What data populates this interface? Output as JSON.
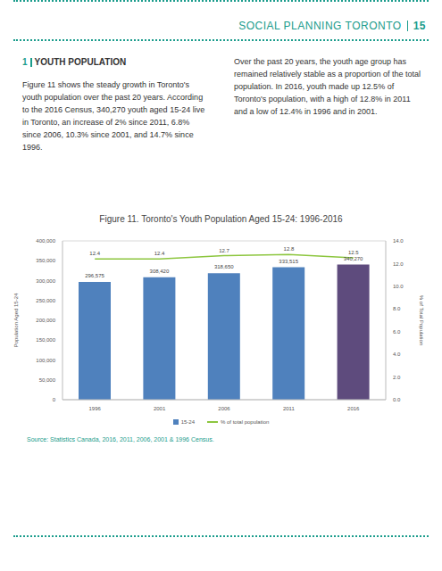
{
  "header": {
    "organization": "SOCIAL PLANNING TORONTO",
    "page": "15"
  },
  "section": {
    "number": "1",
    "title": "YOUTH POPULATION",
    "paragraphs": [
      "Figure 11 shows the steady growth in Toronto's youth population over the past 20 years. According to the 2016 Census, 340,270 youth aged 15-24 live in Toronto, an increase of 2% since 2011, 6.8% since 2006, 10.3% since 2001, and 14.7% since 1996.",
      "Over the past 20 years, the youth age group has remained relatively stable as a proportion of the total population. In 2016, youth made up 12.5% of Toronto's population, with a high of 12.8% in 2011 and a low of 12.4% in 1996 and in 2001."
    ]
  },
  "chart_data": {
    "type": "bar",
    "title": "Figure 11. Toronto's Youth Population Aged 15-24: 1996-2016",
    "y_label": "Population Aged 15-24",
    "y2_label": "% of Total Population",
    "categories": [
      "1996",
      "2001",
      "2006",
      "2011",
      "2016"
    ],
    "series": [
      {
        "name": "15-24",
        "type": "bar",
        "colors": [
          "#4f81bd",
          "#4f81bd",
          "#4f81bd",
          "#4f81bd",
          "#5e4b7d"
        ],
        "values": [
          296575,
          308420,
          318650,
          333515,
          340270
        ],
        "value_labels": [
          "296,575",
          "308,420",
          "318,650",
          "333,515",
          "340,270"
        ]
      },
      {
        "name": "% of total population",
        "type": "line",
        "axis": "y2",
        "color": "#8dc63f",
        "values": [
          12.4,
          12.4,
          12.7,
          12.8,
          12.5
        ]
      }
    ],
    "ylim": [
      0,
      400000
    ],
    "yticks": [
      0,
      {
        "value": 50000,
        "label": "50,000"
      },
      {
        "value": 100000,
        "label": "100,000"
      },
      {
        "value": 150000,
        "label": "150,000"
      },
      {
        "value": 200000,
        "label": "200,000"
      },
      {
        "value": 250000,
        "label": "250,000"
      },
      {
        "value": 300000,
        "label": "300,000"
      },
      {
        "value": 350000,
        "label": "350,000"
      },
      {
        "value": 400000,
        "label": "400,000"
      }
    ],
    "y2lim": [
      0,
      14
    ],
    "y2ticks": [
      {
        "value": 0,
        "label": "0.0"
      },
      {
        "value": 2,
        "label": "2.0"
      },
      {
        "value": 4,
        "label": "4.0"
      },
      {
        "value": 6,
        "label": "6.0"
      },
      {
        "value": 8,
        "label": "8.0"
      },
      {
        "value": 10,
        "label": "10.0"
      },
      {
        "value": 12,
        "label": "12.0"
      },
      {
        "value": 14,
        "label": "14.0"
      }
    ],
    "grid": true,
    "data_labels": true,
    "source": "Source: Statistics Canada, 2016, 2011, 2006, 2001 & 1996 Census."
  }
}
